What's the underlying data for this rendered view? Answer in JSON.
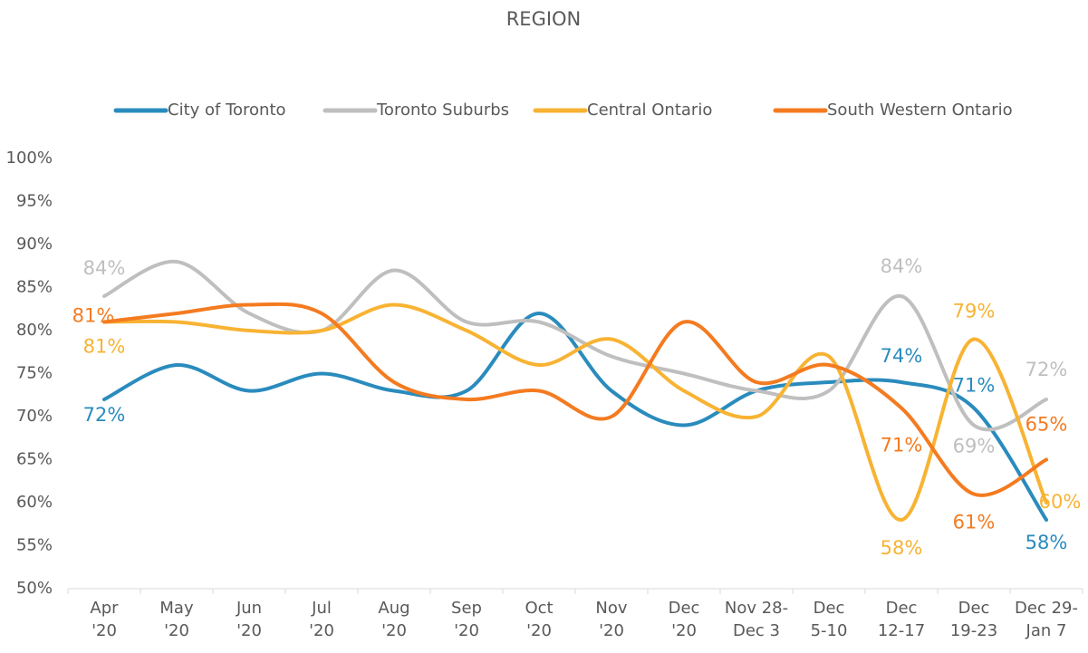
{
  "chart_data": {
    "type": "line",
    "title": "REGION",
    "categories": [
      [
        "Apr",
        "'20"
      ],
      [
        "May",
        "'20"
      ],
      [
        "Jun",
        "'20"
      ],
      [
        "Jul",
        "'20"
      ],
      [
        "Aug",
        "'20"
      ],
      [
        "Sep",
        "'20"
      ],
      [
        "Oct",
        "'20"
      ],
      [
        "Nov",
        "'20"
      ],
      [
        "Dec",
        "'20"
      ],
      [
        "Nov 28-",
        "Dec 3"
      ],
      [
        "Dec",
        "5-10"
      ],
      [
        "Dec",
        "12-17"
      ],
      [
        "Dec",
        "19-23"
      ],
      [
        "Dec 29-",
        "Jan 7"
      ]
    ],
    "series": [
      {
        "name": "City of Toronto",
        "color": "#2a8bbd",
        "values": [
          72,
          76,
          73,
          75,
          73,
          73,
          82,
          73,
          69,
          73,
          74,
          74,
          71,
          58
        ],
        "value_labels": [
          "72%",
          null,
          null,
          null,
          null,
          null,
          null,
          null,
          null,
          null,
          null,
          "74%",
          "71%",
          "58%"
        ]
      },
      {
        "name": "Toronto Suburbs",
        "color": "#bfbfbf",
        "values": [
          84,
          88,
          82,
          80,
          87,
          81,
          81,
          77,
          75,
          73,
          73,
          84,
          69,
          72
        ],
        "value_labels": [
          "84%",
          null,
          null,
          null,
          null,
          null,
          null,
          null,
          null,
          null,
          null,
          "84%",
          "69%",
          "72%"
        ]
      },
      {
        "name": "Central Ontario",
        "color": "#f8b333",
        "values": [
          81,
          81,
          80,
          80,
          83,
          80,
          76,
          79,
          73,
          70,
          77,
          58,
          79,
          60
        ],
        "value_labels": [
          "81%",
          null,
          null,
          null,
          null,
          null,
          null,
          null,
          null,
          null,
          null,
          "58%",
          "79%",
          "60%"
        ]
      },
      {
        "name": "South Western Ontario",
        "color": "#f47b20",
        "values": [
          81,
          82,
          83,
          82,
          74,
          72,
          73,
          70,
          81,
          74,
          76,
          71,
          61,
          65
        ],
        "value_labels": [
          "81%",
          null,
          null,
          null,
          null,
          null,
          null,
          null,
          null,
          null,
          null,
          "71%",
          "61%",
          "65%"
        ]
      }
    ],
    "ylim": [
      50,
      100
    ],
    "yticks": [
      {
        "value": 50,
        "label": "50%"
      },
      {
        "value": 55,
        "label": "55%"
      },
      {
        "value": 60,
        "label": "60%"
      },
      {
        "value": 65,
        "label": "65%"
      },
      {
        "value": 70,
        "label": "70%"
      },
      {
        "value": 75,
        "label": "75%"
      },
      {
        "value": 80,
        "label": "80%"
      },
      {
        "value": 85,
        "label": "85%"
      },
      {
        "value": 90,
        "label": "90%"
      },
      {
        "value": 95,
        "label": "95%"
      },
      {
        "value": 100,
        "label": "100%"
      }
    ],
    "grid": false,
    "legend": "top",
    "smooth": true
  }
}
